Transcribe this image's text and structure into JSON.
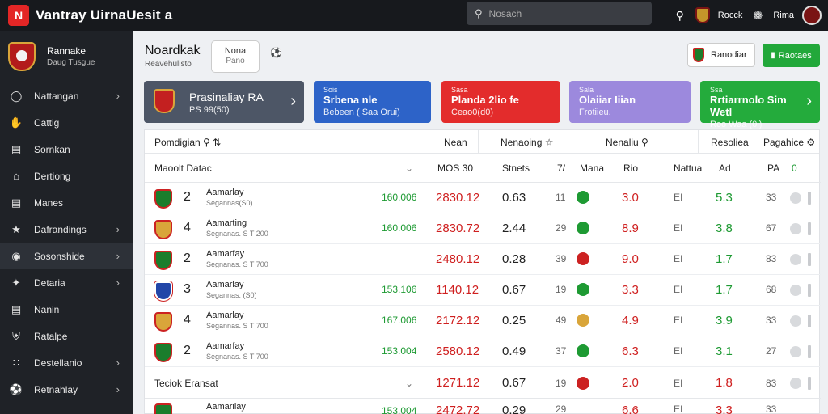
{
  "topbar": {
    "logo": "N",
    "title": "Vantray UirnaUesit a",
    "search_placeholder": "Nosach",
    "link1": "Rocck",
    "link2": "Rima"
  },
  "sidebar": {
    "header": {
      "title": "Rannake",
      "subtitle": "Daug Tusgue"
    },
    "items": [
      {
        "label": "Nattangan",
        "icon": "globe-icon",
        "chevron": true
      },
      {
        "label": "Cattig",
        "icon": "hand-icon",
        "chevron": false
      },
      {
        "label": "Sornkan",
        "icon": "list-icon",
        "chevron": false
      },
      {
        "label": "Dertiong",
        "icon": "home-icon",
        "chevron": false
      },
      {
        "label": "Manes",
        "icon": "chart-icon",
        "chevron": false
      },
      {
        "label": "Dafrandings",
        "icon": "tag-icon",
        "chevron": true
      },
      {
        "label": "Sosonshide",
        "icon": "gamepad-icon",
        "chevron": true
      },
      {
        "label": "Detaria",
        "icon": "pin-icon",
        "chevron": true
      },
      {
        "label": "Nanin",
        "icon": "doc-icon",
        "chevron": false
      },
      {
        "label": "Ratalpe",
        "icon": "shield-icon",
        "chevron": false
      },
      {
        "label": "Destellanio",
        "icon": "grid-icon",
        "chevron": true
      },
      {
        "label": "Retnahlay",
        "icon": "soccer-icon",
        "chevron": true
      }
    ]
  },
  "header": {
    "title": "Noardkak",
    "subtitle": "Reavehulisto",
    "chip_title": "Nona",
    "chip_sub": "Pano",
    "btn_white": "Ranodiar",
    "btn_green": "Raotaes"
  },
  "cards": [
    {
      "title": "Prasinaliay RA",
      "sub": "PS 99(50)",
      "color": "#4d5666"
    },
    {
      "small": "Sois",
      "title": "Srbena nle",
      "sub": "Bebeen ( Saa Orui)",
      "color": "#2d63c8"
    },
    {
      "small": "Sasa",
      "title": "Planda 2lio fe",
      "sub": "Ceao0(d0)",
      "color": "#e32c2c"
    },
    {
      "small": "Sala",
      "title": "Olaiiar Iiian",
      "sub": "Frotiieu.",
      "color": "#9c89dd"
    },
    {
      "small": "Ssa",
      "title": "Rrtiarrnolo Sim Wetl",
      "sub": "Roo Waa (0l)",
      "color": "#24ab3c"
    }
  ],
  "table": {
    "headers": {
      "col1": "Pomdigian",
      "col2": "Nean",
      "col3": "Nenaoing",
      "col4": "Nenaliu",
      "col5": "Resoliea",
      "col6": "Pagahice"
    },
    "group1": {
      "label": "Maoolt Datac",
      "cols": [
        "MOS 30",
        "Stnets",
        "7/",
        "Mana",
        "Rio",
        "Nattua",
        "Ad",
        "PA",
        "0"
      ]
    },
    "rows": [
      {
        "rank": "2",
        "team": "Aamarlay",
        "sub": "Segannas(S0)",
        "odds": "160.006",
        "v1": "2830.12",
        "v2": "0.63",
        "v3": "11",
        "v4": "3.0",
        "v5": "EI",
        "v6": "5.3",
        "v7": "33",
        "dot": "#1e9a33"
      },
      {
        "rank": "4",
        "team": "Aamarting",
        "sub": "Segnanas. S T 200",
        "odds": "160.006",
        "v1": "2830.72",
        "v2": "2.44",
        "v3": "29",
        "v4": "8.9",
        "v5": "EI",
        "v6": "3.8",
        "v7": "67",
        "dot": "#1e9a33"
      },
      {
        "rank": "2",
        "team": "Aamarfay",
        "sub": "Segnanas. S T 700",
        "odds": "",
        "v1": "2480.12",
        "v2": "0.28",
        "v3": "39",
        "v4": "9.0",
        "v5": "EI",
        "v6": "1.7",
        "v7": "83",
        "dot": "#c22"
      },
      {
        "rank": "3",
        "team": "Aamarlay",
        "sub": "Segannas. (S0)",
        "odds": "153.106",
        "v1": "1140.12",
        "v2": "0.67",
        "v3": "19",
        "v4": "3.3",
        "v5": "EI",
        "v6": "1.7",
        "v7": "68",
        "dot": "#1e9a33"
      },
      {
        "rank": "4",
        "team": "Aamarlay",
        "sub": "Segannas. S T 700",
        "odds": "167.006",
        "v1": "2172.12",
        "v2": "0.25",
        "v3": "49",
        "v4": "4.9",
        "v5": "EI",
        "v6": "3.9",
        "v7": "33",
        "dot": "#d9a53a"
      },
      {
        "rank": "2",
        "team": "Aamarfay",
        "sub": "Segnanas. S T 700",
        "odds": "153.004",
        "v1": "2580.12",
        "v2": "0.49",
        "v3": "37",
        "v4": "6.3",
        "v5": "EI",
        "v6": "3.1",
        "v7": "27",
        "dot": "#1e9a33"
      }
    ],
    "group2": {
      "label": "Teciok Eransat",
      "v1": "1271.12",
      "v2": "0.67",
      "v3": "19",
      "v4": "2.0",
      "v5": "EI",
      "v6": "1.8",
      "v7": "83"
    },
    "partial_row": {
      "team": "Aamarilay",
      "odds": "153.004",
      "v1": "2472.72",
      "v2": "0.29",
      "v3": "29",
      "v4": "6.6",
      "v5": "EI",
      "v6": "3.3",
      "v7": "33"
    }
  }
}
